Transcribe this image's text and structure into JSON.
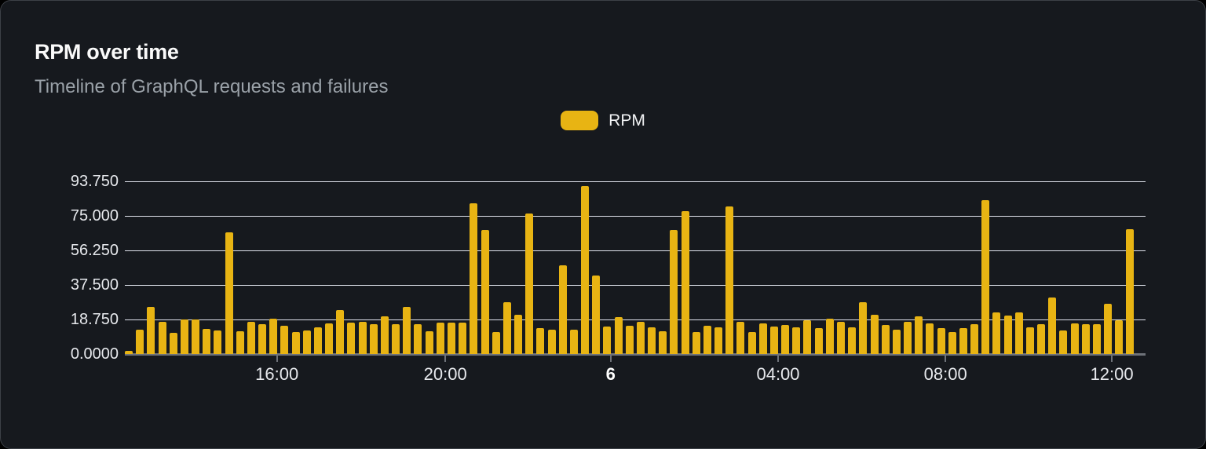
{
  "card": {
    "title": "RPM over time",
    "subtitle": "Timeline of GraphQL requests and failures"
  },
  "legend": {
    "label": "RPM"
  },
  "colors": {
    "page_bg": "#000000",
    "card_bg": "#16191e",
    "card_border": "#3c4046",
    "title": "#fafafa",
    "subtitle": "#9aa1a8",
    "bar": "#e8b413",
    "grid": "#e0e4ed",
    "axis_line": "#6e7279",
    "tick_label": "#e7e9ed"
  },
  "chart_data": {
    "type": "bar",
    "title": "RPM over time",
    "subtitle": "Timeline of GraphQL requests and failures",
    "series_name": "RPM",
    "xlabel": "",
    "ylabel": "",
    "ylim": [
      0,
      93.75
    ],
    "grid": true,
    "legend_position": "top-center",
    "y_ticks": [
      "93.750",
      "75.000",
      "56.250",
      "37.500",
      "18.750",
      "0.0000"
    ],
    "x_ticks": [
      {
        "label": "16:00",
        "pos": 0.149,
        "bold": false
      },
      {
        "label": "20:00",
        "pos": 0.314,
        "bold": false
      },
      {
        "label": "6",
        "pos": 0.476,
        "bold": true
      },
      {
        "label": "04:00",
        "pos": 0.64,
        "bold": false
      },
      {
        "label": "08:00",
        "pos": 0.804,
        "bold": false
      },
      {
        "label": "12:00",
        "pos": 0.967,
        "bold": false
      }
    ],
    "values": [
      1.8,
      13.3,
      25.6,
      17.6,
      11.5,
      18.7,
      18.7,
      13.7,
      13.0,
      66.0,
      12.3,
      17.3,
      16.2,
      19.2,
      15.2,
      11.8,
      13.0,
      14.4,
      16.6,
      23.8,
      17.0,
      17.3,
      16.0,
      20.4,
      16.0,
      25.6,
      16.0,
      12.5,
      17.0,
      17.0,
      17.0,
      82.0,
      67.5,
      11.8,
      28.1,
      21.3,
      76.3,
      13.9,
      13.1,
      48.3,
      13.1,
      91.2,
      42.6,
      14.9,
      19.9,
      15.3,
      17.3,
      14.6,
      12.4,
      67.5,
      77.4,
      11.8,
      15.3,
      14.6,
      80.0,
      17.3,
      11.8,
      16.6,
      14.9,
      15.9,
      14.6,
      18.2,
      14.2,
      19.2,
      17.5,
      14.5,
      28.1,
      21.3,
      15.6,
      13.2,
      17.3,
      20.3,
      16.8,
      13.9,
      12.1,
      14.2,
      16.3,
      83.5,
      22.4,
      20.9,
      22.4,
      14.5,
      16.0,
      30.5,
      12.8,
      16.8,
      16.0,
      16.0,
      27.4,
      18.4,
      67.7
    ]
  }
}
